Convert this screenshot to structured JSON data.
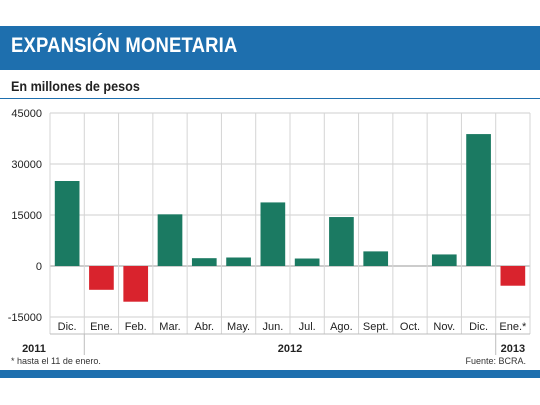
{
  "header": {
    "title": "EXPANSIÓN MONETARIA",
    "subtitle": "En millones de pesos"
  },
  "footer": {
    "note": "* hasta el 11 de enero.",
    "source": "Fuente: BCRA."
  },
  "colors": {
    "positive": "#1b7a62",
    "negative": "#d9232d",
    "accent": "#1e6fae"
  },
  "chart_data": {
    "type": "bar",
    "categories": [
      "Dic.",
      "Ene.",
      "Feb.",
      "Mar.",
      "Abr.",
      "May.",
      "Jun.",
      "Jul.",
      "Ago.",
      "Sept.",
      "Oct.",
      "Nov.",
      "Dic.",
      "Ene.*"
    ],
    "values": [
      25000,
      -7000,
      -10500,
      15200,
      2300,
      2500,
      18700,
      2200,
      14400,
      4300,
      0,
      3400,
      38800,
      -5800
    ],
    "years": [
      {
        "label": "2011",
        "from": 0,
        "to": 0
      },
      {
        "label": "2012",
        "from": 1,
        "to": 12
      },
      {
        "label": "2013",
        "from": 13,
        "to": 13
      }
    ],
    "yticks": [
      -15000,
      0,
      15000,
      30000,
      45000
    ],
    "ylim": [
      -15000,
      45000
    ],
    "grid": true
  }
}
